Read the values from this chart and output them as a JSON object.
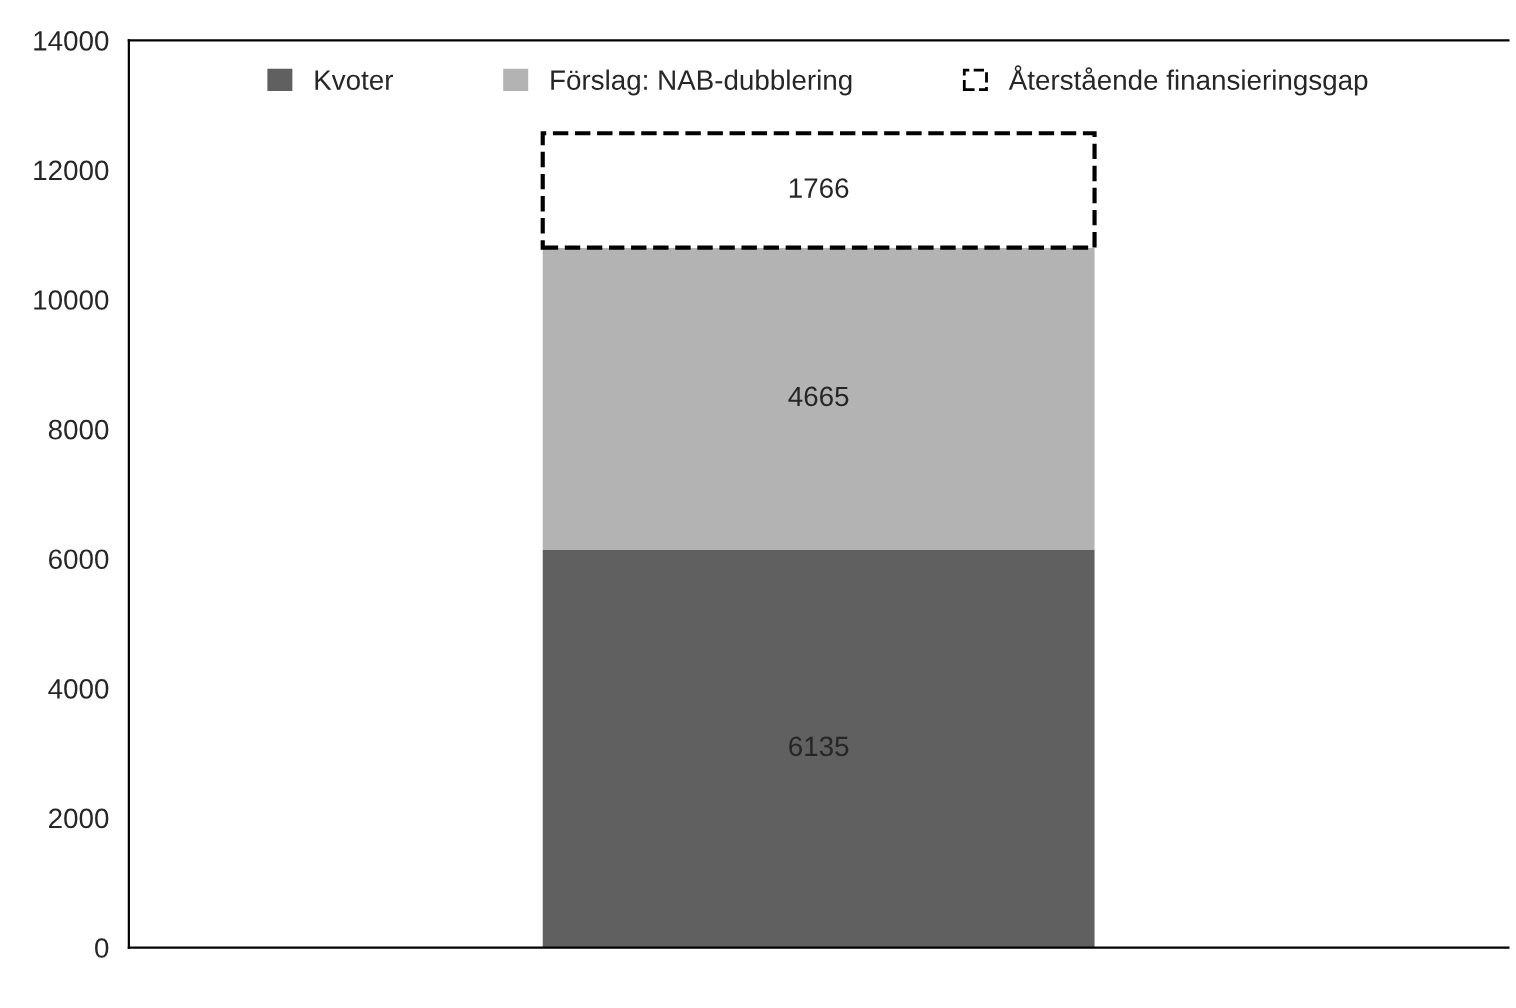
{
  "chart_data": {
    "type": "bar",
    "stacked": true,
    "categories": [
      null
    ],
    "series": [
      {
        "name": "Kvoter",
        "color": "#606060",
        "values": [
          6135
        ]
      },
      {
        "name": "Förslag: NAB-dubblering",
        "color": "#b3b3b3",
        "values": [
          4665
        ]
      },
      {
        "name": "Återstående finansieringsgap",
        "color": "#ffffff",
        "line_style": "dashed",
        "values": [
          1766
        ]
      }
    ],
    "ylim": [
      0,
      14000
    ],
    "yticks": [
      0,
      2000,
      4000,
      6000,
      8000,
      10000,
      12000,
      14000
    ],
    "data_labels": true,
    "legend": "top",
    "grid": false
  }
}
